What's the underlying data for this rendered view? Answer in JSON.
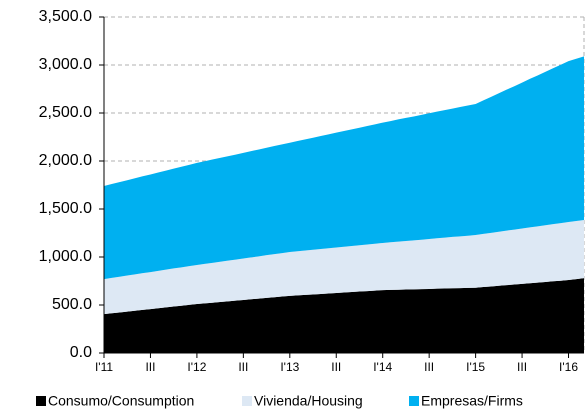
{
  "chart_data": {
    "type": "stacked_area",
    "categories": [
      "I'11",
      null,
      null,
      null,
      null,
      null,
      "III",
      null,
      null,
      null,
      null,
      null,
      "I'12",
      null,
      null,
      null,
      null,
      null,
      "III",
      null,
      null,
      null,
      null,
      null,
      "I'13",
      null,
      null,
      null,
      null,
      null,
      "III",
      null,
      null,
      null,
      null,
      null,
      "I'14",
      null,
      null,
      null,
      null,
      null,
      "III",
      null,
      null,
      null,
      null,
      null,
      "I'15",
      null,
      null,
      null,
      null,
      null,
      "III",
      null,
      null,
      null,
      null,
      null,
      "I'16",
      null,
      null
    ],
    "series": [
      {
        "name": "Consumo/Consumption",
        "color": "#000000",
        "values": [
          405,
          414,
          422,
          431,
          440,
          449,
          457,
          466,
          475,
          484,
          492,
          501,
          510,
          517,
          524,
          531,
          538,
          545,
          552,
          560,
          567,
          574,
          581,
          588,
          595,
          600,
          605,
          610,
          615,
          620,
          625,
          630,
          635,
          640,
          645,
          650,
          655,
          657,
          659,
          661,
          663,
          665,
          667,
          670,
          672,
          674,
          676,
          678,
          680,
          687,
          693,
          700,
          707,
          713,
          720,
          727,
          733,
          740,
          747,
          753,
          760,
          770,
          780
        ]
      },
      {
        "name": "Vivienda/Housing",
        "color": "#dde8f4",
        "values": [
          365,
          369,
          372,
          376,
          379,
          383,
          386,
          390,
          393,
          397,
          400,
          404,
          407,
          411,
          415,
          420,
          424,
          428,
          432,
          436,
          440,
          445,
          449,
          453,
          457,
          460,
          463,
          465,
          468,
          471,
          474,
          477,
          480,
          482,
          485,
          488,
          491,
          496,
          501,
          506,
          510,
          515,
          520,
          525,
          530,
          535,
          539,
          544,
          549,
          554,
          558,
          563,
          568,
          572,
          577,
          582,
          586,
          591,
          596,
          600,
          605,
          605,
          605
        ]
      },
      {
        "name": "Empresas/Firms",
        "color": "#00b0f0",
        "values": [
          970,
          978,
          986,
          993,
          1001,
          1009,
          1017,
          1024,
          1032,
          1040,
          1048,
          1055,
          1063,
          1069,
          1076,
          1082,
          1088,
          1094,
          1101,
          1107,
          1113,
          1119,
          1126,
          1132,
          1138,
          1148,
          1157,
          1167,
          1177,
          1186,
          1196,
          1206,
          1215,
          1225,
          1235,
          1244,
          1254,
          1263,
          1273,
          1282,
          1291,
          1300,
          1310,
          1319,
          1328,
          1337,
          1347,
          1356,
          1365,
          1391,
          1417,
          1443,
          1468,
          1494,
          1520,
          1546,
          1572,
          1597,
          1623,
          1649,
          1675,
          1690,
          1705
        ]
      }
    ],
    "ylim": [
      0,
      3500
    ],
    "yticks": [
      {
        "value": 0,
        "label": "0.0"
      },
      {
        "value": 500,
        "label": "500.0"
      },
      {
        "value": 1000,
        "label": "1,000.0"
      },
      {
        "value": 1500,
        "label": "1,500.0"
      },
      {
        "value": 2000,
        "label": "2,000.0"
      },
      {
        "value": 2500,
        "label": "2,500.0"
      },
      {
        "value": 3000,
        "label": "3,000.0"
      },
      {
        "value": 3500,
        "label": "3,500.0"
      }
    ],
    "grid": true,
    "legend": "bottom"
  }
}
